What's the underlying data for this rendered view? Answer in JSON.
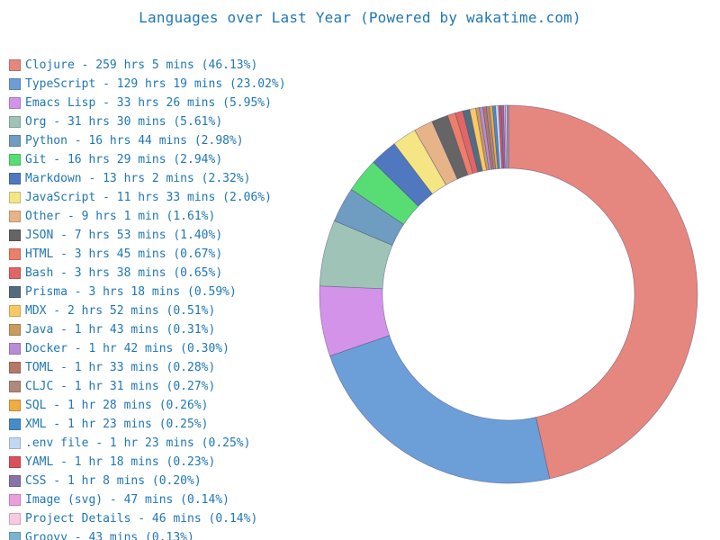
{
  "title": "Languages over Last Year (Powered by wakatime.com)",
  "chart_data": {
    "type": "pie",
    "style": "donut",
    "title": "Languages over Last Year (Powered by wakatime.com)",
    "legend": "left",
    "slices": [
      {
        "label": "Clojure - 259 hrs 5 mins (46.13%)",
        "name": "Clojure",
        "value": 46.13,
        "color": "#e5877f"
      },
      {
        "label": "TypeScript - 129 hrs 19 mins (23.02%)",
        "name": "TypeScript",
        "value": 23.02,
        "color": "#6c9fd8"
      },
      {
        "label": "Emacs Lisp - 33 hrs 26 mins (5.95%)",
        "name": "Emacs Lisp",
        "value": 5.95,
        "color": "#d393e8"
      },
      {
        "label": "Org - 31 hrs 30 mins (5.61%)",
        "name": "Org",
        "value": 5.61,
        "color": "#9fc4b7"
      },
      {
        "label": "Python - 16 hrs 44 mins (2.98%)",
        "name": "Python",
        "value": 2.98,
        "color": "#6f9cc1"
      },
      {
        "label": "Git - 16 hrs 29 mins (2.94%)",
        "name": "Git",
        "value": 2.94,
        "color": "#58dd75"
      },
      {
        "label": "Markdown - 13 hrs 2 mins (2.32%)",
        "name": "Markdown",
        "value": 2.32,
        "color": "#5078bf"
      },
      {
        "label": "JavaScript - 11 hrs 33 mins (2.06%)",
        "name": "JavaScript",
        "value": 2.06,
        "color": "#f5e584"
      },
      {
        "label": "Other - 9 hrs 1 min (1.61%)",
        "name": "Other",
        "value": 1.61,
        "color": "#e7b48a"
      },
      {
        "label": "JSON - 7 hrs 53 mins (1.40%)",
        "name": "JSON",
        "value": 1.4,
        "color": "#656565"
      },
      {
        "label": "HTML - 3 hrs 45 mins (0.67%)",
        "name": "HTML",
        "value": 0.67,
        "color": "#ec7f6a"
      },
      {
        "label": "Bash - 3 hrs 38 mins (0.65%)",
        "name": "Bash",
        "value": 0.65,
        "color": "#e26565"
      },
      {
        "label": "Prisma - 3 hrs 18 mins (0.59%)",
        "name": "Prisma",
        "value": 0.59,
        "color": "#536d80"
      },
      {
        "label": "MDX - 2 hrs 52 mins (0.51%)",
        "name": "MDX",
        "value": 0.51,
        "color": "#fac865"
      },
      {
        "label": "Java - 1 hr 43 mins (0.31%)",
        "name": "Java",
        "value": 0.31,
        "color": "#c99b5d"
      },
      {
        "label": "Docker - 1 hr 42 mins (0.30%)",
        "name": "Docker",
        "value": 0.3,
        "color": "#b88dd6"
      },
      {
        "label": "TOML - 1 hr 33 mins (0.28%)",
        "name": "TOML",
        "value": 0.28,
        "color": "#b57966"
      },
      {
        "label": "CLJC - 1 hr 31 mins (0.27%)",
        "name": "CLJC",
        "value": 0.27,
        "color": "#b1897c"
      },
      {
        "label": "SQL - 1 hr 28 mins (0.26%)",
        "name": "SQL",
        "value": 0.26,
        "color": "#eeac42"
      },
      {
        "label": "XML - 1 hr 23 mins (0.25%)",
        "name": "XML",
        "value": 0.25,
        "color": "#468cc8"
      },
      {
        "label": ".env file - 1 hr 23 mins (0.25%)",
        "name": ".env file",
        "value": 0.25,
        "color": "#c1d8f2"
      },
      {
        "label": "YAML - 1 hr 18 mins (0.23%)",
        "name": "YAML",
        "value": 0.23,
        "color": "#dc505b"
      },
      {
        "label": "CSS - 1 hr 8 mins (0.20%)",
        "name": "CSS",
        "value": 0.2,
        "color": "#8773a8"
      },
      {
        "label": "Image (svg) - 47 mins (0.14%)",
        "name": "Image (svg)",
        "value": 0.14,
        "color": "#ed9fd9"
      },
      {
        "label": "Project Details - 46 mins (0.14%)",
        "name": "Project Details",
        "value": 0.14,
        "color": "#fbc8e2"
      },
      {
        "label": "Groovy - 43 mins (0.13%)",
        "name": "Groovy",
        "value": 0.13,
        "color": "#7ab4ce"
      }
    ]
  }
}
